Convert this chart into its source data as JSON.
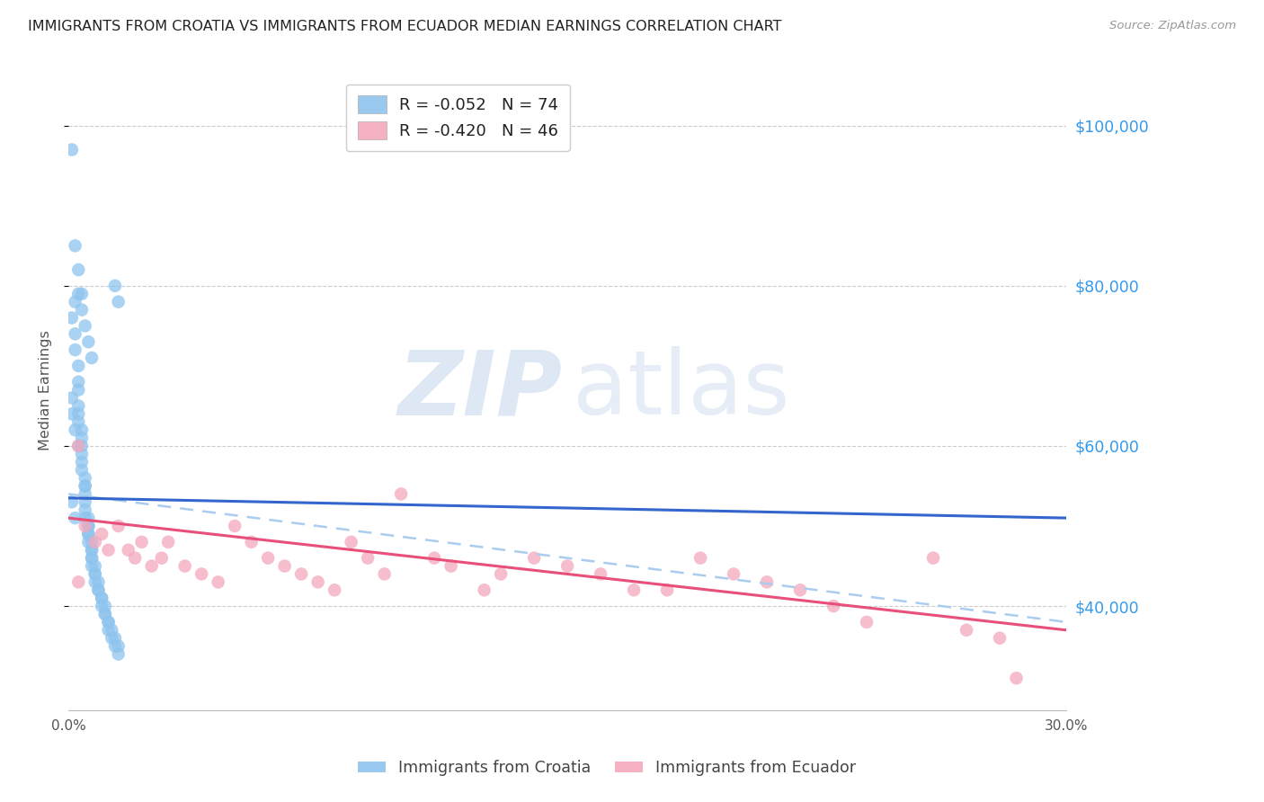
{
  "title": "IMMIGRANTS FROM CROATIA VS IMMIGRANTS FROM ECUADOR MEDIAN EARNINGS CORRELATION CHART",
  "source": "Source: ZipAtlas.com",
  "ylabel": "Median Earnings",
  "xlim": [
    0.0,
    0.3
  ],
  "ylim": [
    27000,
    107000
  ],
  "yticks": [
    40000,
    60000,
    80000,
    100000
  ],
  "ytick_labels": [
    "$40,000",
    "$60,000",
    "$80,000",
    "$100,000"
  ],
  "xtick_labels": [
    "0.0%",
    "",
    "",
    "",
    "",
    "",
    "30.0%"
  ],
  "croatia_color": "#8EC4EE",
  "ecuador_color": "#F4A8BC",
  "trendline_croatia_color": "#3366CC",
  "trendline_ecuador_color": "#E8507A",
  "trendline_dashed_color": "#AACCEE",
  "croatia_R": -0.052,
  "croatia_N": 74,
  "ecuador_R": -0.42,
  "ecuador_N": 46,
  "cro_trendline": [
    53500,
    51000
  ],
  "ecu_trendline": [
    51000,
    37000
  ],
  "dash_trendline": [
    54000,
    38000
  ],
  "croatia_x": [
    0.001,
    0.002,
    0.002,
    0.002,
    0.003,
    0.003,
    0.003,
    0.003,
    0.003,
    0.003,
    0.004,
    0.004,
    0.004,
    0.004,
    0.004,
    0.004,
    0.005,
    0.005,
    0.005,
    0.005,
    0.005,
    0.005,
    0.005,
    0.006,
    0.006,
    0.006,
    0.006,
    0.006,
    0.006,
    0.007,
    0.007,
    0.007,
    0.007,
    0.007,
    0.007,
    0.008,
    0.008,
    0.008,
    0.008,
    0.009,
    0.009,
    0.009,
    0.01,
    0.01,
    0.01,
    0.011,
    0.011,
    0.011,
    0.012,
    0.012,
    0.012,
    0.013,
    0.013,
    0.014,
    0.014,
    0.015,
    0.015,
    0.001,
    0.002,
    0.003,
    0.003,
    0.004,
    0.004,
    0.005,
    0.006,
    0.007,
    0.001,
    0.002,
    0.014,
    0.015,
    0.001,
    0.001,
    0.002,
    0.003
  ],
  "croatia_y": [
    76000,
    78000,
    74000,
    72000,
    70000,
    68000,
    67000,
    65000,
    64000,
    63000,
    62000,
    61000,
    60000,
    59000,
    58000,
    57000,
    56000,
    55000,
    55000,
    54000,
    53000,
    52000,
    51000,
    51000,
    50000,
    50000,
    49000,
    49000,
    48000,
    48000,
    47000,
    47000,
    46000,
    46000,
    45000,
    45000,
    44000,
    44000,
    43000,
    43000,
    42000,
    42000,
    41000,
    41000,
    40000,
    40000,
    39000,
    39000,
    38000,
    38000,
    37000,
    37000,
    36000,
    36000,
    35000,
    35000,
    34000,
    97000,
    85000,
    82000,
    79000,
    79000,
    77000,
    75000,
    73000,
    71000,
    53000,
    51000,
    80000,
    78000,
    66000,
    64000,
    62000,
    60000
  ],
  "ecuador_x": [
    0.003,
    0.005,
    0.008,
    0.01,
    0.012,
    0.015,
    0.018,
    0.02,
    0.022,
    0.025,
    0.028,
    0.03,
    0.035,
    0.04,
    0.045,
    0.05,
    0.055,
    0.06,
    0.065,
    0.07,
    0.075,
    0.08,
    0.085,
    0.09,
    0.095,
    0.1,
    0.11,
    0.115,
    0.125,
    0.13,
    0.14,
    0.15,
    0.16,
    0.17,
    0.18,
    0.19,
    0.2,
    0.21,
    0.22,
    0.23,
    0.24,
    0.26,
    0.27,
    0.28,
    0.285,
    0.003
  ],
  "ecuador_y": [
    60000,
    50000,
    48000,
    49000,
    47000,
    50000,
    47000,
    46000,
    48000,
    45000,
    46000,
    48000,
    45000,
    44000,
    43000,
    50000,
    48000,
    46000,
    45000,
    44000,
    43000,
    42000,
    48000,
    46000,
    44000,
    54000,
    46000,
    45000,
    42000,
    44000,
    46000,
    45000,
    44000,
    42000,
    42000,
    46000,
    44000,
    43000,
    42000,
    40000,
    38000,
    46000,
    37000,
    36000,
    31000,
    43000
  ]
}
